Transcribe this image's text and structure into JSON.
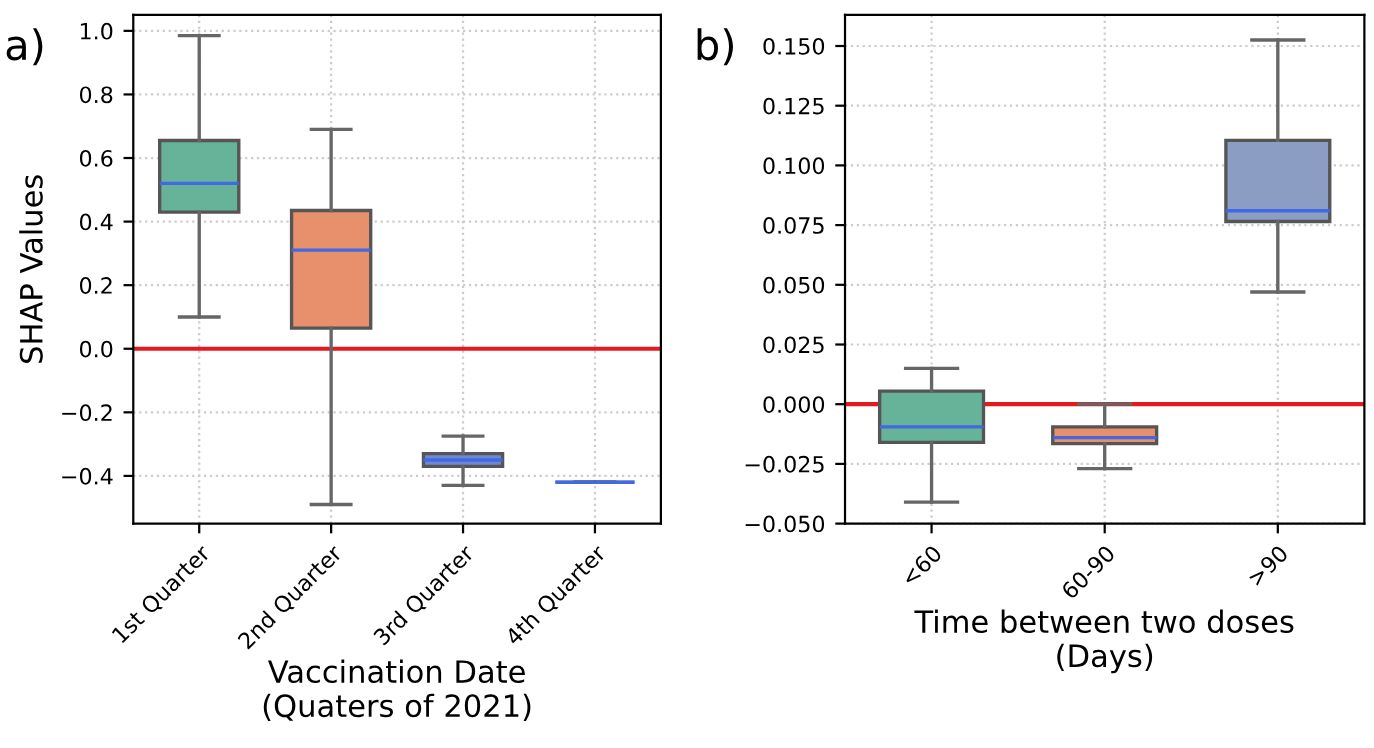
{
  "chart_data": [
    {
      "type": "box",
      "title": "a)",
      "xlabel": "Vaccination Date\n(Quaters of 2021)",
      "ylabel": "SHAP Values",
      "categories": [
        "1st Quarter",
        "2nd Quarter",
        "3rd Quarter",
        "4th Quarter"
      ],
      "colors": [
        "#66b39a",
        "#e8906c",
        "#6f88d6",
        "#7b8fd1"
      ],
      "boxes": [
        {
          "low": 0.1,
          "q1": 0.43,
          "median": 0.52,
          "q3": 0.655,
          "high": 0.985
        },
        {
          "low": -0.49,
          "q1": 0.065,
          "median": 0.31,
          "q3": 0.435,
          "high": 0.69
        },
        {
          "low": -0.43,
          "q1": -0.37,
          "median": -0.35,
          "q3": -0.33,
          "high": -0.275
        },
        {
          "low": -0.42,
          "q1": -0.42,
          "median": -0.42,
          "q3": -0.42,
          "high": -0.42
        }
      ],
      "ylim": [
        -0.55,
        1.05
      ],
      "yticks": [
        {
          "value": -0.4,
          "label": "−0.4"
        },
        {
          "value": -0.2,
          "label": "−0.2"
        },
        {
          "value": 0.0,
          "label": "0.0"
        },
        0.2,
        0.4,
        0.6,
        0.8,
        {
          "value": 1.0,
          "label": "1.0"
        }
      ],
      "grid": true,
      "ref_lines": [
        {
          "axis": "y",
          "value": 0,
          "color": "#e41a1c"
        }
      ]
    },
    {
      "type": "box",
      "title": "b)",
      "xlabel": "Time between two doses\n(Days)",
      "categories": [
        "<60",
        "60-90",
        ">90"
      ],
      "colors": [
        "#66b39a",
        "#e8906c",
        "#8c9dc4"
      ],
      "boxes": [
        {
          "low": -0.041,
          "q1": -0.016,
          "median": -0.0095,
          "q3": 0.0055,
          "high": 0.015
        },
        {
          "low": -0.027,
          "q1": -0.0165,
          "median": -0.014,
          "q3": -0.0095,
          "high": 0.0
        },
        {
          "low": 0.047,
          "q1": 0.0765,
          "median": 0.081,
          "q3": 0.1105,
          "high": 0.1525
        }
      ],
      "ylim": [
        -0.05,
        0.163
      ],
      "yticks": [
        {
          "value": -0.05,
          "label": "−0.050"
        },
        {
          "value": -0.025,
          "label": "−0.025"
        },
        {
          "value": 0.0,
          "label": "0.000"
        },
        {
          "value": 0.025,
          "label": "0.025"
        },
        {
          "value": 0.05,
          "label": "0.050"
        },
        {
          "value": 0.075,
          "label": "0.075"
        },
        {
          "value": 0.1,
          "label": "0.100"
        },
        {
          "value": 0.125,
          "label": "0.125"
        },
        {
          "value": 0.15,
          "label": "0.150"
        }
      ],
      "grid": true,
      "ref_lines": [
        {
          "axis": "y",
          "value": 0,
          "color": "#e41a1c"
        }
      ]
    }
  ]
}
